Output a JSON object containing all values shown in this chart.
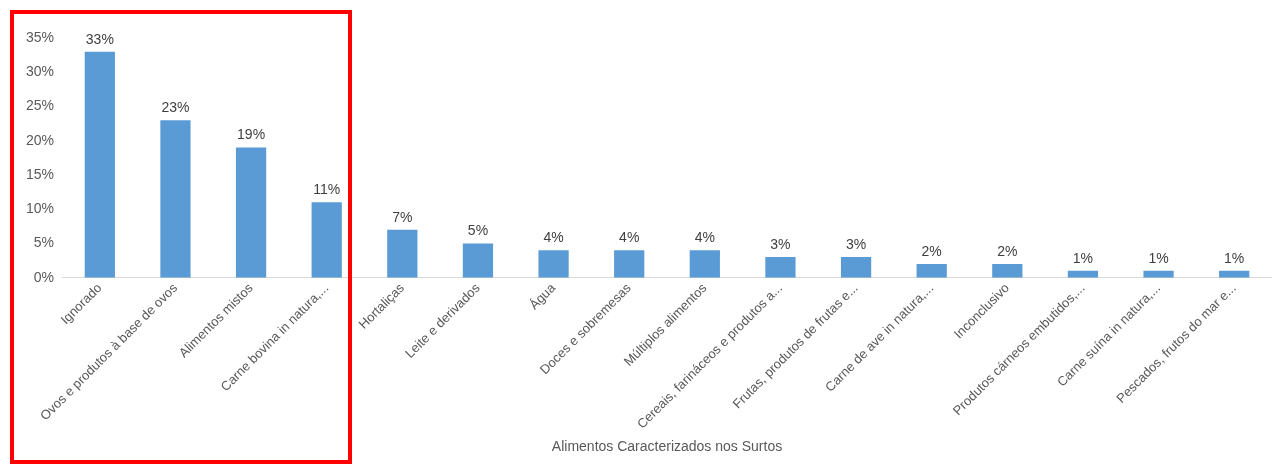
{
  "chart_data": {
    "type": "bar",
    "xlabel": "Alimentos Caracterizados nos Surtos",
    "categories": [
      "Ignorado",
      "Ovos e produtos à base de ovos",
      "Alimentos mistos",
      "Carne bovina in natura,...",
      "Hortaliças",
      "Leite e derivados",
      "Água",
      "Doces e sobremesas",
      "Múltiplos alimentos",
      "Cereais, farináceos e produtos a...",
      "Frutas, produtos de frutas e...",
      "Carne de ave in natura,...",
      "Inconclusivo",
      "Produtos cárneos embutidos,...",
      "Carne suína in natura,...",
      "Pescados, frutos do mar e..."
    ],
    "values": [
      33,
      23,
      19,
      11,
      7,
      5,
      4,
      4,
      4,
      3,
      3,
      2,
      2,
      1,
      1,
      1
    ],
    "value_labels": [
      "33%",
      "23%",
      "19%",
      "11%",
      "7%",
      "5%",
      "4%",
      "4%",
      "4%",
      "3%",
      "3%",
      "2%",
      "2%",
      "1%",
      "1%",
      "1%"
    ],
    "color": "#5b9bd5",
    "ylim": [
      0,
      35
    ],
    "yticks": [
      {
        "value": 0,
        "label": "0%"
      },
      {
        "value": 5,
        "label": "5%"
      },
      {
        "value": 10,
        "label": "10%"
      },
      {
        "value": 15,
        "label": "15%"
      },
      {
        "value": 20,
        "label": "20%"
      },
      {
        "value": 25,
        "label": "25%"
      },
      {
        "value": 30,
        "label": "30%"
      },
      {
        "value": 35,
        "label": "35%"
      }
    ],
    "grid": false,
    "legend": false
  }
}
